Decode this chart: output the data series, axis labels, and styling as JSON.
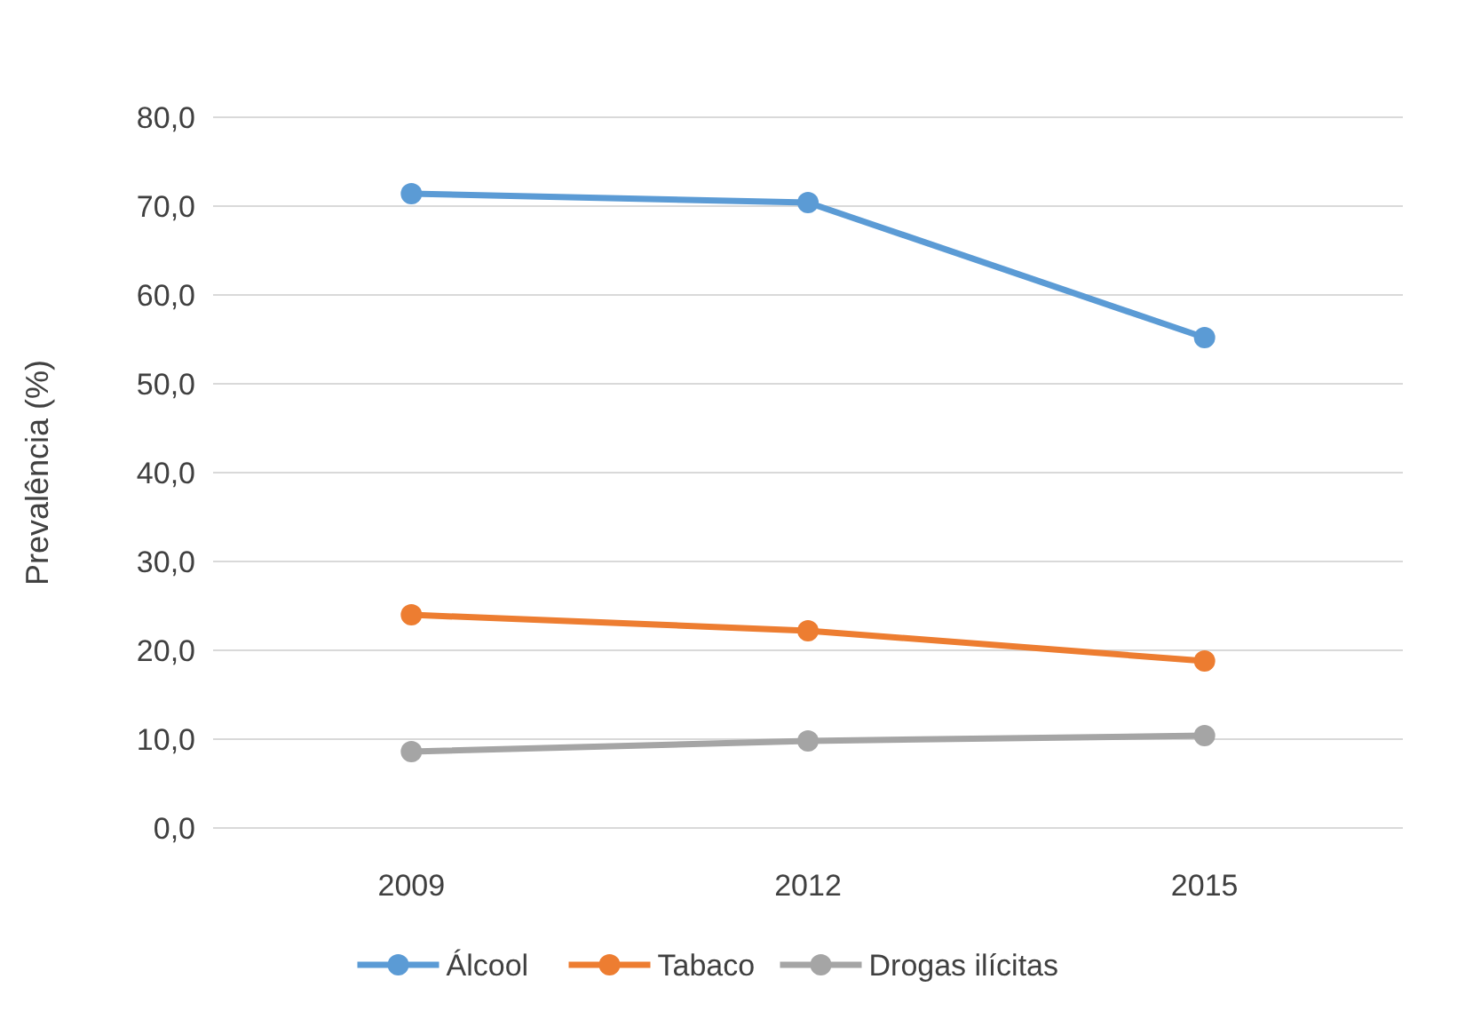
{
  "chart_data": {
    "type": "line",
    "ylabel": "Prevalência (%)",
    "categories": [
      "2009",
      "2012",
      "2015"
    ],
    "series": [
      {
        "name": "Álcool",
        "color": "#5b9bd5",
        "values": [
          71.4,
          70.4,
          55.2
        ]
      },
      {
        "name": "Tabaco",
        "color": "#ed7d31",
        "values": [
          24.0,
          22.2,
          18.8
        ]
      },
      {
        "name": "Drogas ilícitas",
        "color": "#a5a5a5",
        "values": [
          8.6,
          9.8,
          10.4
        ]
      }
    ],
    "ylim": [
      0,
      80
    ],
    "yticks": [
      {
        "value": 0,
        "label": "0,0"
      },
      {
        "value": 10,
        "label": "10,0"
      },
      {
        "value": 20,
        "label": "20,0"
      },
      {
        "value": 30,
        "label": "30,0"
      },
      {
        "value": 40,
        "label": "40,0"
      },
      {
        "value": 50,
        "label": "50,0"
      },
      {
        "value": 60,
        "label": "60,0"
      },
      {
        "value": 70,
        "label": "70,0"
      },
      {
        "value": 80,
        "label": "80,0"
      }
    ],
    "grid": "y",
    "legend": "bottom",
    "marker": "circle",
    "line_style": "solid"
  }
}
